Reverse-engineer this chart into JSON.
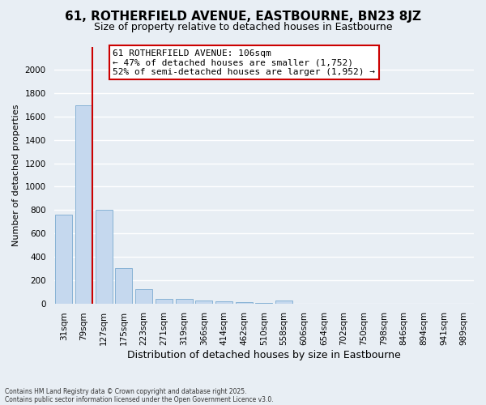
{
  "title": "61, ROTHERFIELD AVENUE, EASTBOURNE, BN23 8JZ",
  "subtitle": "Size of property relative to detached houses in Eastbourne",
  "xlabel": "Distribution of detached houses by size in Eastbourne",
  "ylabel": "Number of detached properties",
  "categories": [
    "31sqm",
    "79sqm",
    "127sqm",
    "175sqm",
    "223sqm",
    "271sqm",
    "319sqm",
    "366sqm",
    "414sqm",
    "462sqm",
    "510sqm",
    "558sqm",
    "606sqm",
    "654sqm",
    "702sqm",
    "750sqm",
    "798sqm",
    "846sqm",
    "894sqm",
    "941sqm",
    "989sqm"
  ],
  "values": [
    760,
    1700,
    800,
    300,
    120,
    42,
    42,
    25,
    15,
    8,
    1,
    25,
    0,
    0,
    0,
    0,
    0,
    0,
    0,
    0,
    0
  ],
  "bar_color": "#c5d8ee",
  "bar_edge_color": "#7aaad0",
  "property_label": "61 ROTHERFIELD AVENUE: 106sqm",
  "annotation_line1": "← 47% of detached houses are smaller (1,752)",
  "annotation_line2": "52% of semi-detached houses are larger (1,952) →",
  "ylim": [
    0,
    2200
  ],
  "yticks": [
    0,
    200,
    400,
    600,
    800,
    1000,
    1200,
    1400,
    1600,
    1800,
    2000
  ],
  "footnote1": "Contains HM Land Registry data © Crown copyright and database right 2025.",
  "footnote2": "Contains public sector information licensed under the Open Government Licence v3.0.",
  "bg_color": "#e8eef4",
  "grid_color": "#ffffff",
  "annotation_box_color": "#ffffff",
  "annotation_box_edge": "#cc0000",
  "title_fontsize": 11,
  "subtitle_fontsize": 9,
  "ylabel_fontsize": 8,
  "xlabel_fontsize": 9,
  "tick_fontsize": 7.5,
  "annotation_fontsize": 8
}
